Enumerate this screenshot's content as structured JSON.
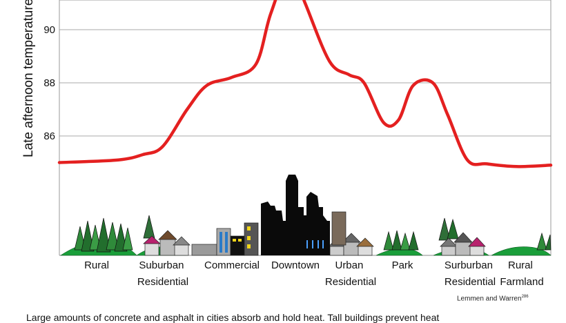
{
  "chart_data": {
    "type": "line",
    "ylabel": "Late afternoon temperature (°F)",
    "yticks": [
      86,
      88,
      90
    ],
    "ylim": [
      84,
      92.3
    ],
    "grid": true,
    "line_color": "#e42020",
    "categories": [
      "Rural",
      "Suburban Residential",
      "Commercial",
      "Downtown",
      "Urban Residential",
      "Park",
      "Surburban Residential",
      "Rural Farmland"
    ],
    "series": [
      {
        "x": [
          0.0,
          0.12,
          0.17,
          0.21,
          0.26,
          0.3,
          0.35,
          0.4,
          0.43,
          0.47,
          0.5,
          0.55,
          0.59,
          0.62,
          0.66,
          0.69,
          0.72,
          0.76,
          0.79,
          0.83,
          0.87,
          0.93,
          1.0
        ],
        "y": [
          85.0,
          85.1,
          85.3,
          85.6,
          87.0,
          87.9,
          88.2,
          88.7,
          90.6,
          92.3,
          91.0,
          88.8,
          88.3,
          88.0,
          86.5,
          86.6,
          87.9,
          88.0,
          86.8,
          85.1,
          84.95,
          84.85,
          84.9
        ]
      }
    ],
    "credit": "Lemmen and Warren",
    "credit_ref": "286",
    "caption": "Large amounts of concrete and asphalt in cities absorb and hold heat. Tall buildings prevent heat"
  }
}
